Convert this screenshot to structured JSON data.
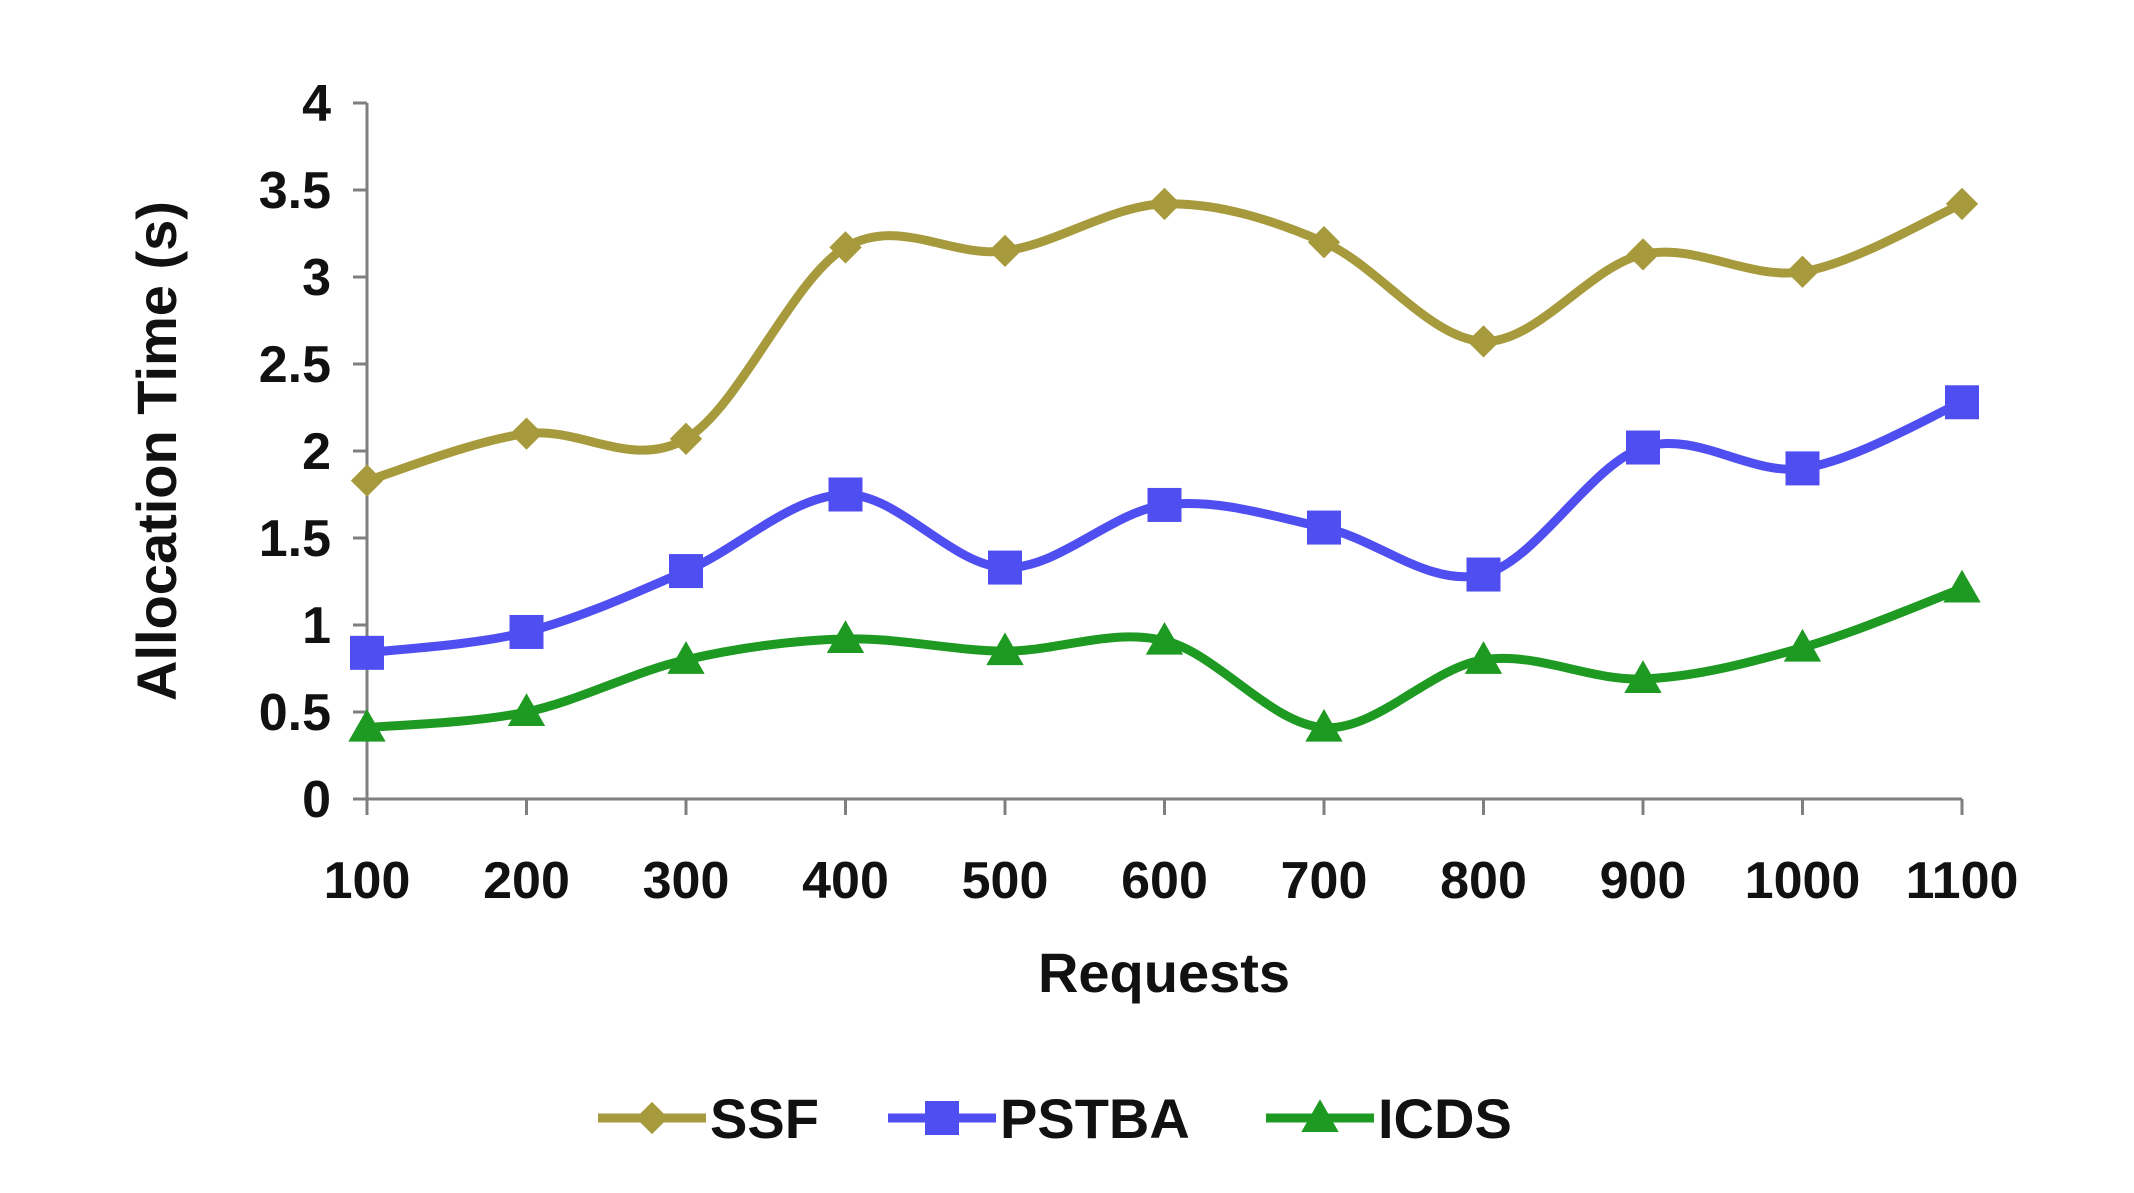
{
  "chart_data": {
    "type": "line",
    "title": "",
    "xlabel": "Requests",
    "ylabel": "Allocation Time (s)",
    "categories": [
      "100",
      "200",
      "300",
      "400",
      "500",
      "600",
      "700",
      "800",
      "900",
      "1000",
      "1100"
    ],
    "y_ticks": [
      "0",
      "0.5",
      "1",
      "1.5",
      "2",
      "2.5",
      "3",
      "3.5",
      "4"
    ],
    "ylim": [
      0,
      4
    ],
    "grid": false,
    "legend_position": "bottom",
    "smooth": true,
    "series": [
      {
        "name": "SSF",
        "color": "#a79a3c",
        "marker": "diamond",
        "values": [
          1.83,
          2.1,
          2.07,
          3.17,
          3.15,
          3.42,
          3.2,
          2.63,
          3.13,
          3.03,
          3.42
        ]
      },
      {
        "name": "PSTBA",
        "color": "#4f4ef0",
        "marker": "square",
        "values": [
          0.84,
          0.96,
          1.31,
          1.75,
          1.33,
          1.69,
          1.56,
          1.29,
          2.02,
          1.9,
          2.28
        ]
      },
      {
        "name": "ICDS",
        "color": "#1e9a23",
        "marker": "triangle",
        "values": [
          0.41,
          0.5,
          0.8,
          0.92,
          0.85,
          0.91,
          0.41,
          0.8,
          0.69,
          0.87,
          1.21
        ]
      }
    ]
  }
}
